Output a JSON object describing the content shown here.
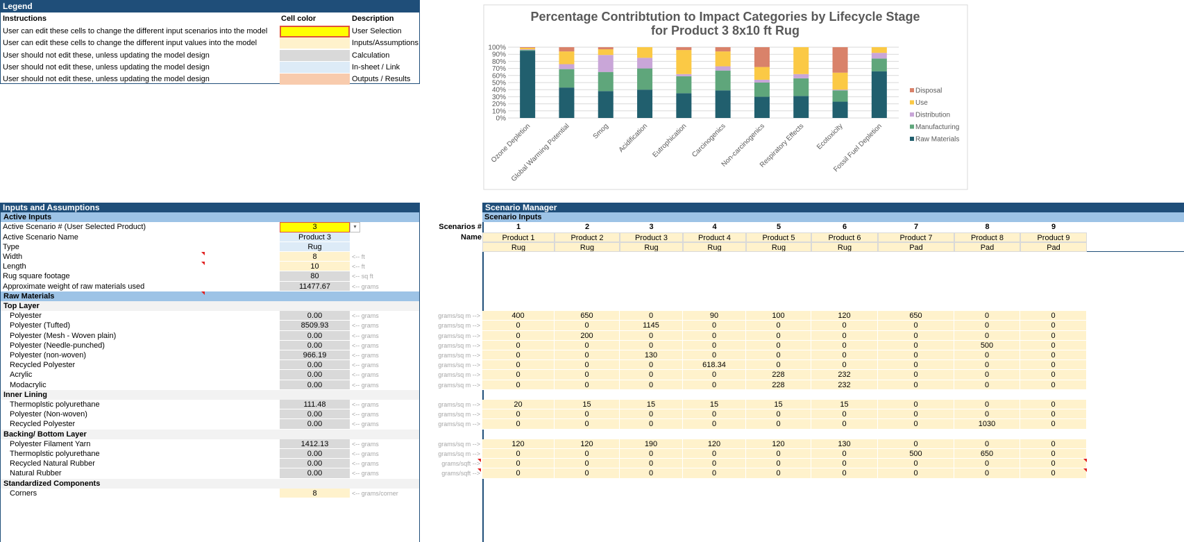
{
  "legend": {
    "title": "Legend",
    "headers": [
      "Instructions",
      "Cell color",
      "Description"
    ],
    "rows": [
      {
        "instruction": "User can edit these cells to change the different input scenarios into the model",
        "description": "User Selection"
      },
      {
        "instruction": "User can edit these cells to change the different input values into the model",
        "description": "Inputs/Assumptions"
      },
      {
        "instruction": "User should not edit these, unless updating the model design",
        "description": "Calculation"
      },
      {
        "instruction": "User should not edit these, unless updating the model design",
        "description": "In-sheet / Link"
      },
      {
        "instruction": "User should not edit these, unless updating the model design",
        "description": "Outputs / Results"
      }
    ]
  },
  "chart_data": {
    "type": "bar",
    "stacked": true,
    "title": [
      "Percentage Contribtution to Impact Categories by Lifecycle Stage",
      "for Product 3 8x10 ft Rug"
    ],
    "categories": [
      "Ozone Depletion",
      "Global Warming Potential",
      "Smog",
      "Acidification",
      "Eutrophication",
      "Carcinogenics",
      "Non-carcinogenics",
      "Respiratory Effects",
      "Ecotoxicity",
      "Fossil Fuel Depletion"
    ],
    "series": [
      {
        "name": "Raw Materials",
        "color": "#215f6e",
        "values": [
          95,
          43,
          38,
          40,
          35,
          39,
          30,
          31,
          23,
          66
        ]
      },
      {
        "name": "Manufacturing",
        "color": "#5fa67b",
        "values": [
          1,
          26,
          27,
          30,
          24,
          28,
          20,
          25,
          16,
          18
        ]
      },
      {
        "name": "Distribution",
        "color": "#c9a6d8",
        "values": [
          1,
          7,
          24,
          15,
          3,
          6,
          4,
          6,
          1,
          8
        ]
      },
      {
        "name": "Use",
        "color": "#fbc945",
        "values": [
          2,
          18,
          8,
          15,
          34,
          21,
          18,
          38,
          24,
          8
        ]
      },
      {
        "name": "Disposal",
        "color": "#d9826a",
        "values": [
          1,
          6,
          3,
          0,
          4,
          6,
          28,
          0,
          36,
          0
        ]
      }
    ],
    "ylim": [
      0,
      100
    ],
    "yticks": [
      {
        "value": 0,
        "label": "0%"
      },
      {
        "value": 10,
        "label": "10%"
      },
      {
        "value": 20,
        "label": "20%"
      },
      {
        "value": 30,
        "label": "30%"
      },
      {
        "value": 40,
        "label": "40%"
      },
      {
        "value": 50,
        "label": "50%"
      },
      {
        "value": 60,
        "label": "60%"
      },
      {
        "value": 70,
        "label": "70%"
      },
      {
        "value": 80,
        "label": "80%"
      },
      {
        "value": 90,
        "label": "90%"
      },
      {
        "value": 100,
        "label": "100%"
      }
    ],
    "grid": true,
    "legend": "right"
  },
  "inputs": {
    "title": "Inputs and Assumptions",
    "rows": [
      {
        "label": "Active Inputs"
      },
      {
        "label": "Active Scenario # (User Selected Product)",
        "value": 3
      },
      {
        "label": "Active Scenario Name",
        "value": "Product 3"
      },
      {
        "label": "Type",
        "value": "Rug"
      },
      {
        "label": "Width",
        "value": 8,
        "unit": "<-- ft"
      },
      {
        "label": "Length",
        "value": 10,
        "unit": "<-- ft"
      },
      {
        "label": "Rug square footage",
        "value": 80,
        "unit": "<-- sq ft"
      },
      {
        "label": "Approximate weight of raw materials used",
        "value": 11477.67,
        "unit": "<-- grams"
      },
      {
        "label": "Raw Materials"
      },
      {
        "label": "Top Layer"
      },
      {
        "label": "Polyester",
        "value": "0.00",
        "unit": "<-- grams"
      },
      {
        "label": "Polyester (Tufted)",
        "value": "8509.93",
        "unit": "<-- grams"
      },
      {
        "label": "Polyester (Mesh - Woven plain)",
        "value": "0.00",
        "unit": "<-- grams"
      },
      {
        "label": "Polyester (Needle-punched)",
        "value": "0.00",
        "unit": "<-- grams"
      },
      {
        "label": "Polyester (non-woven)",
        "value": "966.19",
        "unit": "<-- grams"
      },
      {
        "label": "Recycled Polyester",
        "value": "0.00",
        "unit": "<-- grams"
      },
      {
        "label": "Acrylic",
        "value": "0.00",
        "unit": "<-- grams"
      },
      {
        "label": "Modacrylic",
        "value": "0.00",
        "unit": "<-- grams"
      },
      {
        "label": "Inner Lining"
      },
      {
        "label": "Thermoplstic polyurethane",
        "value": "111.48",
        "unit": "<-- grams"
      },
      {
        "label": "Polyester (Non-woven)",
        "value": "0.00",
        "unit": "<-- grams"
      },
      {
        "label": "Recycled Polyester",
        "value": "0.00",
        "unit": "<-- grams"
      },
      {
        "label": "Backing/ Bottom Layer"
      },
      {
        "label": "Polyester Filament Yarn",
        "value": "1412.13",
        "unit": "<-- grams"
      },
      {
        "label": "Thermoplstic polyurethane",
        "value": "0.00",
        "unit": "<-- grams"
      },
      {
        "label": "Recycled Natural Rubber",
        "value": "0.00",
        "unit": "<-- grams"
      },
      {
        "label": "Natural Rubber",
        "value": "0.00",
        "unit": "<-- grams"
      },
      {
        "label": "Standardized Components"
      },
      {
        "label": "Corners",
        "value": 8,
        "unit": "<-- grams/corner"
      }
    ]
  },
  "scenario_manager": {
    "title": "Scenario Manager",
    "subtitle": "Scenario Inputs",
    "number_label": "Scenarios #",
    "name_label": "Name",
    "numbers": [
      1,
      2,
      3,
      4,
      5,
      6,
      7,
      8,
      9
    ],
    "names": [
      "Product 1",
      "Product 2",
      "Product 3",
      "Product 4",
      "Product 5",
      "Product 6",
      "Product 7",
      "Product 8",
      "Product 9"
    ],
    "types": [
      "Rug",
      "Rug",
      "Rug",
      "Rug",
      "Rug",
      "Rug",
      "Pad",
      "Pad",
      "Pad"
    ],
    "rows": [
      {
        "unit": "grams/sq m -->",
        "values": [
          400,
          650,
          0,
          90,
          100,
          120,
          650,
          0,
          0
        ]
      },
      {
        "unit": "grams/sq m -->",
        "values": [
          0,
          0,
          1145,
          0,
          0,
          0,
          0,
          0,
          0
        ]
      },
      {
        "unit": "grams/sq m -->",
        "values": [
          0,
          200,
          0,
          0,
          0,
          0,
          0,
          0,
          0
        ]
      },
      {
        "unit": "grams/sq m -->",
        "values": [
          0,
          0,
          0,
          0,
          0,
          0,
          0,
          500,
          0
        ]
      },
      {
        "unit": "grams/sq m -->",
        "values": [
          0,
          0,
          130,
          0,
          0,
          0,
          0,
          0,
          0
        ]
      },
      {
        "unit": "grams/sq m -->",
        "values": [
          0,
          0,
          0,
          618.34,
          0,
          0,
          0,
          0,
          0
        ]
      },
      {
        "unit": "grams/sq m -->",
        "values": [
          0,
          0,
          0,
          0,
          228,
          232,
          0,
          0,
          0
        ]
      },
      {
        "unit": "grams/sq m -->",
        "values": [
          0,
          0,
          0,
          0,
          228,
          232,
          0,
          0,
          0
        ]
      },
      {
        "unit": "grams/sq m -->",
        "values": [
          20,
          15,
          15,
          15,
          15,
          15,
          0,
          0,
          0
        ]
      },
      {
        "unit": "grams/sq m -->",
        "values": [
          0,
          0,
          0,
          0,
          0,
          0,
          0,
          0,
          0
        ]
      },
      {
        "unit": "grams/sq m -->",
        "values": [
          0,
          0,
          0,
          0,
          0,
          0,
          0,
          1030,
          0
        ]
      },
      {
        "unit": "grams/sq m -->",
        "values": [
          120,
          120,
          190,
          120,
          120,
          130,
          0,
          0,
          0
        ]
      },
      {
        "unit": "grams/sq m -->",
        "values": [
          0,
          0,
          0,
          0,
          0,
          0,
          500,
          650,
          0
        ]
      },
      {
        "unit": "grams/sqft -->",
        "values": [
          0,
          0,
          0,
          0,
          0,
          0,
          0,
          0,
          0
        ]
      },
      {
        "unit": "grams/sqft -->",
        "values": [
          0,
          0,
          0,
          0,
          0,
          0,
          0,
          0,
          0
        ]
      }
    ]
  }
}
